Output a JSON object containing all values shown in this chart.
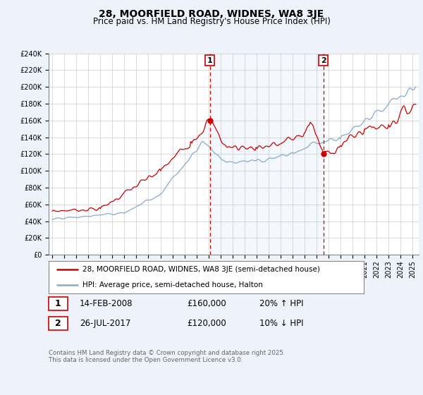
{
  "title": "28, MOORFIELD ROAD, WIDNES, WA8 3JE",
  "subtitle": "Price paid vs. HM Land Registry's House Price Index (HPI)",
  "title_fontsize": 10,
  "subtitle_fontsize": 8.5,
  "background_color": "#eef2fa",
  "plot_bg_color": "#ffffff",
  "grid_color": "#cccccc",
  "red_color": "#cc0000",
  "blue_color": "#88aacc",
  "vline_color": "#cc0000",
  "ylim": [
    0,
    240000
  ],
  "yticks": [
    0,
    20000,
    40000,
    60000,
    80000,
    100000,
    120000,
    140000,
    160000,
    180000,
    200000,
    220000,
    240000
  ],
  "ytick_labels": [
    "£0",
    "£20K",
    "£40K",
    "£60K",
    "£80K",
    "£100K",
    "£120K",
    "£140K",
    "£160K",
    "£180K",
    "£200K",
    "£220K",
    "£240K"
  ],
  "xlim_start": 1994.7,
  "xlim_end": 2025.5,
  "xtick_years": [
    1995,
    1996,
    1997,
    1998,
    1999,
    2000,
    2001,
    2002,
    2003,
    2004,
    2005,
    2006,
    2007,
    2008,
    2009,
    2010,
    2011,
    2012,
    2013,
    2014,
    2015,
    2016,
    2017,
    2018,
    2019,
    2020,
    2021,
    2022,
    2023,
    2024,
    2025
  ],
  "event1_x": 2008.12,
  "event1_y": 160000,
  "event1_label": "1",
  "event1_date": "14-FEB-2008",
  "event1_price": "£160,000",
  "event1_hpi": "20% ↑ HPI",
  "event2_x": 2017.57,
  "event2_y": 120000,
  "event2_label": "2",
  "event2_date": "26-JUL-2017",
  "event2_price": "£120,000",
  "event2_hpi": "10% ↓ HPI",
  "legend_line1": "28, MOORFIELD ROAD, WIDNES, WA8 3JE (semi-detached house)",
  "legend_line2": "HPI: Average price, semi-detached house, Halton",
  "footer_text": "Contains HM Land Registry data © Crown copyright and database right 2025.\nThis data is licensed under the Open Government Licence v3.0."
}
